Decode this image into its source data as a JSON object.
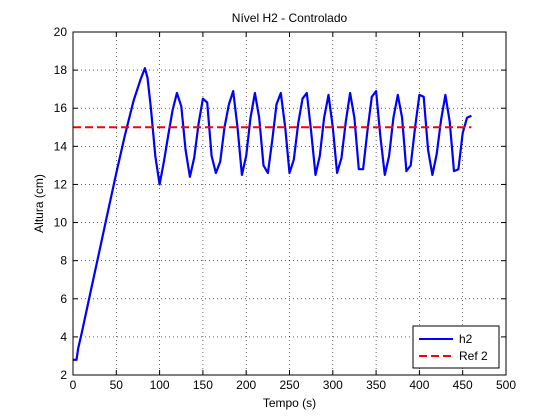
{
  "chart_data": {
    "type": "line",
    "title": "Nível H2 - Controlado",
    "xlabel": "Tempo (s)",
    "ylabel": "Altura (cm)",
    "xlim": [
      0,
      500
    ],
    "ylim": [
      2,
      20
    ],
    "xticks": [
      0,
      50,
      100,
      150,
      200,
      250,
      300,
      350,
      400,
      450,
      500
    ],
    "yticks": [
      2,
      4,
      6,
      8,
      10,
      12,
      14,
      16,
      18,
      20
    ],
    "grid": true,
    "legend_position": "bottom-right",
    "series": [
      {
        "name": "h2",
        "color": "#0000ff",
        "style": "solid",
        "x": [
          0,
          4,
          6,
          10,
          20,
          30,
          40,
          50,
          60,
          70,
          78,
          83,
          86,
          90,
          95,
          100,
          105,
          110,
          115,
          120,
          125,
          130,
          135,
          140,
          145,
          150,
          155,
          160,
          165,
          170,
          175,
          180,
          185,
          190,
          195,
          200,
          205,
          210,
          215,
          220,
          225,
          230,
          235,
          240,
          245,
          250,
          255,
          260,
          265,
          270,
          275,
          280,
          285,
          290,
          295,
          300,
          305,
          310,
          315,
          320,
          325,
          330,
          335,
          340,
          345,
          350,
          355,
          360,
          365,
          370,
          375,
          380,
          385,
          390,
          395,
          400,
          405,
          410,
          415,
          420,
          425,
          430,
          435,
          440,
          445,
          450,
          455,
          460
        ],
        "y": [
          2.8,
          2.8,
          3.4,
          4.2,
          6.3,
          8.4,
          10.5,
          12.6,
          14.6,
          16.4,
          17.5,
          18.1,
          17.6,
          16.0,
          13.5,
          12.0,
          13.2,
          14.6,
          15.9,
          16.8,
          16.1,
          13.8,
          12.4,
          13.4,
          15.2,
          16.5,
          16.3,
          13.5,
          12.6,
          13.2,
          15.0,
          16.2,
          16.9,
          15.0,
          12.5,
          13.5,
          15.5,
          16.8,
          15.5,
          13.0,
          12.6,
          14.3,
          16.2,
          16.8,
          15.0,
          12.6,
          13.3,
          15.2,
          16.5,
          16.8,
          14.8,
          12.5,
          13.5,
          15.5,
          16.7,
          15.0,
          12.6,
          13.4,
          15.3,
          16.8,
          15.5,
          12.8,
          12.8,
          14.8,
          16.6,
          16.9,
          14.5,
          12.5,
          13.5,
          15.5,
          16.7,
          15.5,
          12.7,
          13.0,
          15.0,
          16.7,
          16.6,
          13.8,
          12.5,
          13.6,
          15.4,
          16.7,
          15.3,
          12.7,
          12.8,
          14.7,
          15.5,
          15.6
        ]
      },
      {
        "name": "Ref 2",
        "color": "#ff0000",
        "style": "dashed",
        "x": [
          0,
          460
        ],
        "y": [
          15,
          15
        ]
      }
    ]
  }
}
